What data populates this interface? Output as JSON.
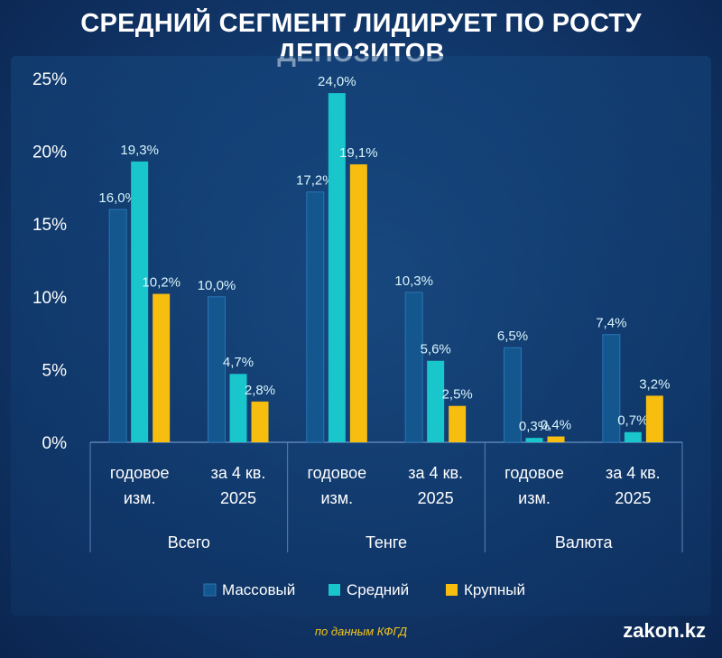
{
  "title": "СРЕДНИЙ СЕГМЕНТ ЛИДИРУЕТ ПО РОСТУ ДЕПОЗИТОВ",
  "source": "по данным КФГД",
  "brand": "zakon.kz",
  "colors": {
    "Массовый": "#14578f",
    "Средний": "#18c6cc",
    "Крупный": "#f7be10",
    "axis": "#5b84b5",
    "text": "#ffffff",
    "label": "#d8f4fb"
  },
  "chart_data": {
    "type": "bar",
    "groups": [
      "Всего",
      "Тенге",
      "Валюта"
    ],
    "categories": [
      [
        "годовое",
        "изм."
      ],
      [
        "за 4 кв.",
        "2025"
      ],
      [
        "годовое",
        "изм."
      ],
      [
        "за 4 кв.",
        "2025"
      ],
      [
        "годовое",
        "изм."
      ],
      [
        "за 4 кв.",
        "2025"
      ]
    ],
    "series": [
      {
        "name": "Массовый",
        "values": [
          16.0,
          10.0,
          17.2,
          10.3,
          6.5,
          7.4
        ],
        "labels": [
          "16,0%",
          "10,0%",
          "17,2%",
          "10,3%",
          "6,5%",
          "7,4%"
        ]
      },
      {
        "name": "Средний",
        "values": [
          19.3,
          4.7,
          24.0,
          5.6,
          0.3,
          0.7
        ],
        "labels": [
          "19,3%",
          "4,7%",
          "24,0%",
          "5,6%",
          "0,3%",
          "0,7%"
        ]
      },
      {
        "name": "Крупный",
        "values": [
          10.2,
          2.8,
          19.1,
          2.5,
          0.4,
          3.2
        ],
        "labels": [
          "10,2%",
          "2,8%",
          "19,1%",
          "2,5%",
          "0,4%",
          "3,2%"
        ]
      }
    ],
    "yticks": [
      "0%",
      "5%",
      "10%",
      "15%",
      "20%",
      "25%"
    ],
    "ylim": [
      0,
      25
    ],
    "grid": false,
    "legend": "bottom-center"
  }
}
